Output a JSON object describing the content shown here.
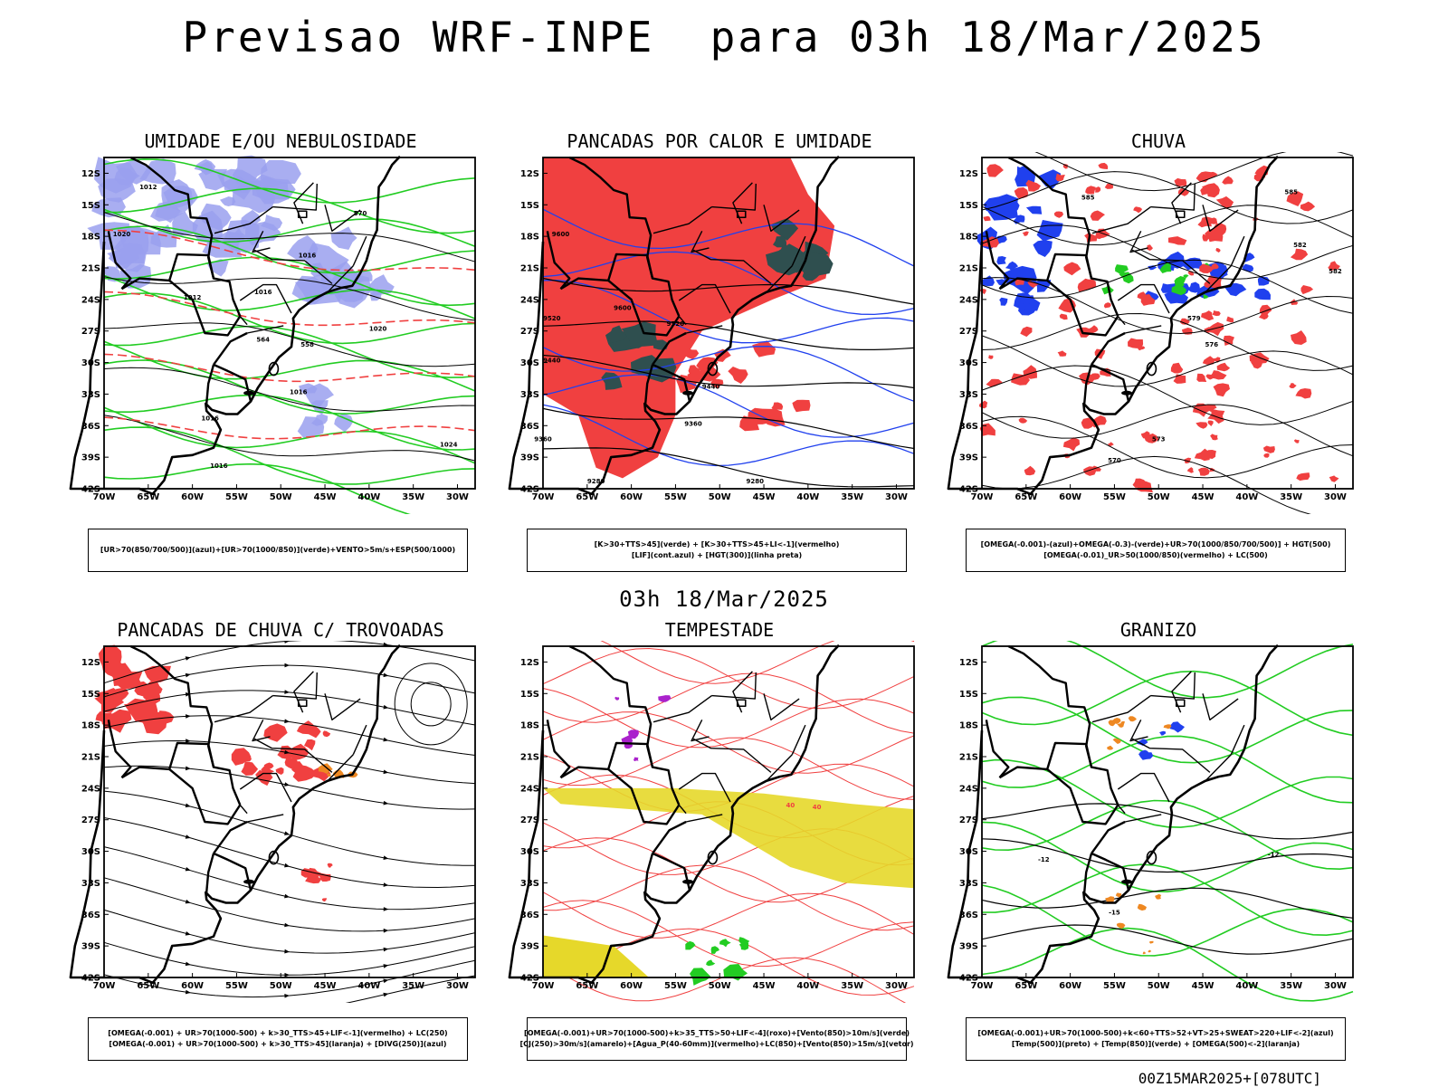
{
  "title": "Previsao WRF-INPE  para 03h 18/Mar/2025",
  "middle_date": "03h 18/Mar/2025",
  "footer": "00Z15MAR2025+[078UTC]",
  "colors": {
    "red_fill": "#f04040",
    "blue_fill": "#9aa0ee",
    "dark_teal": "#2f4f4f",
    "green_line": "#22cc22",
    "yellow_fill": "#e6d82a",
    "blue_line": "#2040ee",
    "orange": "#ee8822",
    "purple": "#aa22cc"
  },
  "lat_labels": [
    "12S",
    "15S",
    "18S",
    "21S",
    "24S",
    "27S",
    "30S",
    "33S",
    "36S",
    "39S",
    "42S"
  ],
  "lon_labels": [
    "70W",
    "65W",
    "60W",
    "55W",
    "50W",
    "45W",
    "40W",
    "35W",
    "30W"
  ],
  "panels": [
    {
      "title": "UMIDADE E/OU NEBULOSIDADE",
      "legend": [
        "[UR>70(850/700/500)](azul)+[UR>70(1000/850)](verde)+VENTO>5m/s+ESP(500/1000)"
      ],
      "contour_labels": [
        "1012",
        "1016",
        "1020",
        "1016",
        "1012",
        "570",
        "564",
        "558",
        "1016",
        "1020",
        "1024",
        "1016",
        "1016"
      ]
    },
    {
      "title": "PANCADAS POR CALOR E UMIDADE",
      "legend": [
        "[K>30+TTS>45](verde)  +  [K>30+TTS>45+LI<-1](vermelho)",
        "[LIF](cont.azul)  +  [HGT(300)](linha preta)"
      ],
      "contour_labels": [
        "9600",
        "9520",
        "9440",
        "9360",
        "9280",
        "9600",
        "9520",
        "9440",
        "9360",
        "9280"
      ]
    },
    {
      "title": "CHUVA",
      "legend": [
        "[OMEGA(-0.001)-(azul)+OMEGA(-0.3)-(verde)+UR>70(1000/850/700/500)]  +  HGT(500)",
        "[OMEGA(-0.01)_UR>50(1000/850)(vermelho)  +  LC(500)"
      ],
      "contour_labels": [
        "585",
        "582",
        "579",
        "576",
        "573",
        "570",
        "585",
        "582"
      ]
    },
    {
      "title": "PANCADAS DE CHUVA C/ TROVOADAS",
      "legend": [
        "[OMEGA(-0.001)  +  UR>70(1000-500)  +  k>30_TTS>45+LIF<-1](vermelho)  +  LC(250)",
        "[OMEGA(-0.001)  +  UR>70(1000-500)  +  k>30_TTS>45](laranja)  +  [DIVG(250)](azul)"
      ],
      "contour_labels": []
    },
    {
      "title": "TEMPESTADE",
      "legend": [
        "[OMEGA(-0.001)+UR>70(1000-500)+k>35_TTS>50+LIF<-4](roxo)+[Vento(850)>10m/s](verde)",
        "[CJ(250)>30m/s](amarelo)+[Agua_P(40-60mm)](vermelho)+LC(850)+[Vento(850)>15m/s](vetor)"
      ],
      "contour_labels": [
        "40",
        "40"
      ]
    },
    {
      "title": "GRANIZO",
      "legend": [
        "[OMEGA(-0.001)+UR>70(1000-500)+k<60+TTS>52+VT>25+SWEAT>220+LIF<-2](azul)",
        "[Temp(500)](preto)  +  [Temp(850)](verde)  +  [OMEGA(500)<-2](laranja)"
      ],
      "contour_labels": [
        "-12",
        "-12",
        "-15"
      ]
    }
  ]
}
